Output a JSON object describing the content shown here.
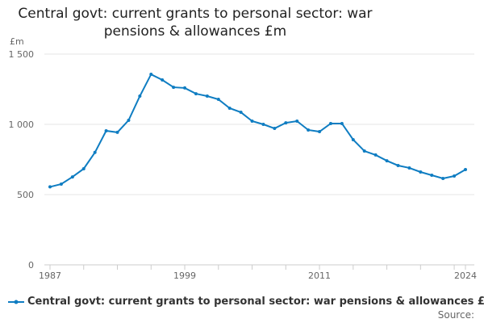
{
  "chart_data": {
    "type": "line",
    "title": "Central govt: current grants to personal sector: war pensions & allowances £m",
    "ylabel": "£m",
    "xlabel": "",
    "ylim": [
      0,
      1500
    ],
    "xlim": [
      1987,
      2024
    ],
    "yticks": [
      0,
      500,
      1000,
      1500
    ],
    "ytick_labels": [
      "0",
      "500",
      "1 000",
      "1 500"
    ],
    "xtick_labels": [
      "1987",
      "1999",
      "2011",
      "2024"
    ],
    "grid": true,
    "legend_position": "bottom",
    "series": [
      {
        "name": "Central govt: current grants to personal sector: war pensions & allowances £m",
        "color": "#0f7dc2",
        "x": [
          1987,
          1988,
          1989,
          1990,
          1991,
          1992,
          1993,
          1994,
          1995,
          1996,
          1997,
          1998,
          1999,
          2000,
          2001,
          2002,
          2003,
          2004,
          2005,
          2006,
          2007,
          2008,
          2009,
          2010,
          2011,
          2012,
          2013,
          2014,
          2015,
          2016,
          2017,
          2018,
          2019,
          2020,
          2021,
          2022,
          2023,
          2024
        ],
        "values": [
          555,
          575,
          626,
          684,
          800,
          954,
          943,
          1029,
          1201,
          1356,
          1316,
          1264,
          1259,
          1218,
          1201,
          1178,
          1115,
          1086,
          1023,
          1000,
          971,
          1011,
          1023,
          960,
          948,
          1006,
          1006,
          891,
          810,
          782,
          741,
          707,
          690,
          661,
          638,
          615,
          632,
          678
        ]
      }
    ]
  },
  "source_label": "Source:"
}
